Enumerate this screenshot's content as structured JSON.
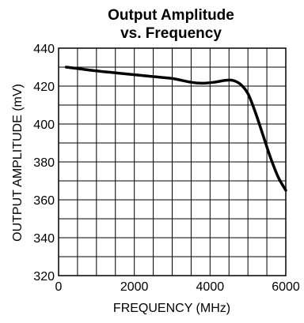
{
  "chart_data": {
    "type": "line",
    "title": "Output Amplitude",
    "subtitle": "vs. Frequency",
    "xlabel": "FREQUENCY (MHz)",
    "ylabel": "OUTPUT AMPLITUDE (mV)",
    "xlim": [
      0,
      6000
    ],
    "ylim": [
      320,
      440
    ],
    "x_ticks": [
      0,
      2000,
      4000,
      6000
    ],
    "x_tick_labels": [
      "0",
      "2000",
      "4000",
      "6000"
    ],
    "y_ticks": [
      320,
      340,
      360,
      380,
      400,
      420,
      440
    ],
    "y_tick_labels": [
      "320",
      "340",
      "360",
      "380",
      "400",
      "420",
      "440"
    ],
    "x_minor_step": 500,
    "y_minor_step": 10,
    "grid": true,
    "legend": "none",
    "line_color": "#000000",
    "series": [
      {
        "x": [
          200,
          600,
          1000,
          1500,
          2000,
          2500,
          3000,
          3500,
          3800,
          4100,
          4400,
          4600,
          4800,
          5000,
          5200,
          5400,
          5600,
          5800,
          6000
        ],
        "y": [
          430,
          429,
          428,
          427,
          426,
          425,
          424,
          422,
          421.5,
          422,
          423,
          423,
          421,
          416,
          406,
          394,
          382,
          372,
          365
        ]
      }
    ]
  }
}
